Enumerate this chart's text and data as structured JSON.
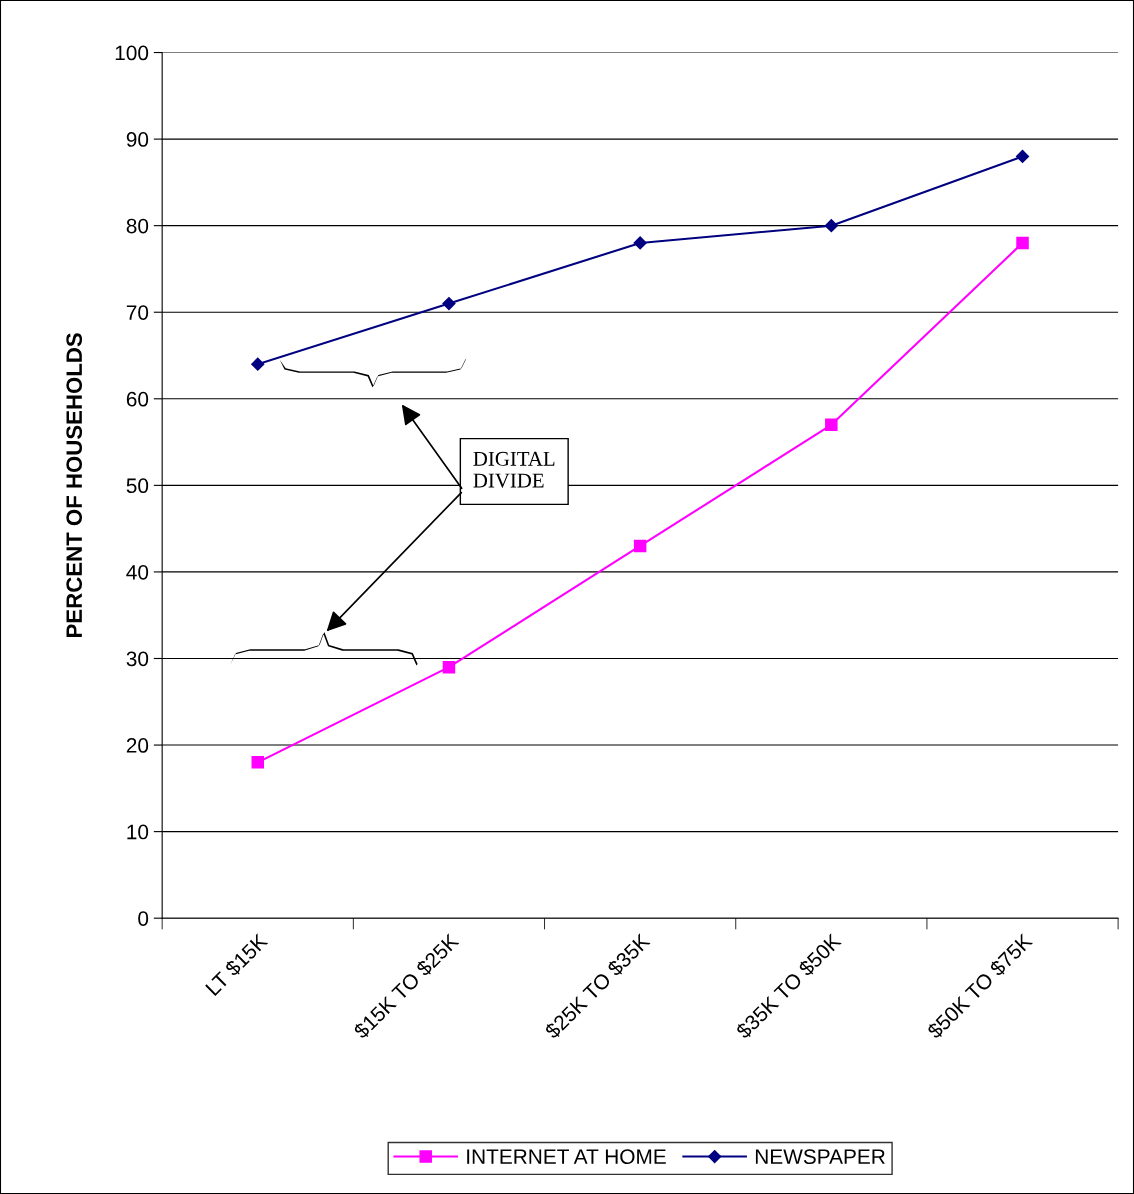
{
  "chart_data": {
    "type": "line",
    "ylabel": "PERCENT OF HOUSEHOLDS",
    "categories": [
      "LT $15K",
      "$15K TO $25K",
      "$25K TO $35K",
      "$35K TO $50K",
      "$50K TO $75K"
    ],
    "series": [
      {
        "name": "INTERNET AT HOME",
        "color": "#ff00ff",
        "marker": "square",
        "values": [
          18,
          29,
          43,
          57,
          78
        ]
      },
      {
        "name": "NEWSPAPER",
        "color": "#000080",
        "marker": "diamond",
        "values": [
          64,
          71,
          78,
          80,
          88
        ]
      }
    ],
    "ylim": [
      0,
      100
    ],
    "yticks": [
      0,
      10,
      20,
      30,
      40,
      50,
      60,
      70,
      80,
      90,
      100
    ],
    "grid": "y",
    "legend": "bottom",
    "annotations": [
      "DIGITAL\nDIVIDE"
    ]
  }
}
